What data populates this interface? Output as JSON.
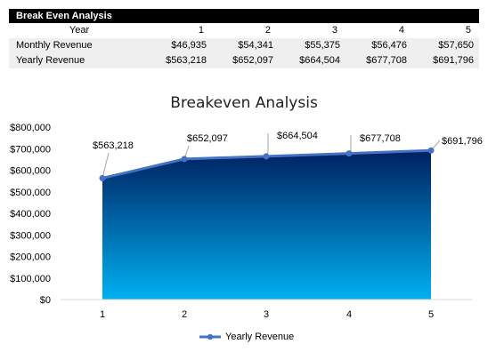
{
  "table": {
    "title": "Break Even Analysis",
    "year_label": "Year",
    "years": [
      "1",
      "2",
      "3",
      "4",
      "5"
    ],
    "rows": [
      {
        "label": "Monthly Revenue",
        "values": [
          "$46,935",
          "$54,341",
          "$55,375",
          "$56,476",
          "$57,650"
        ]
      },
      {
        "label": "Yearly Revenue",
        "values": [
          "$563,218",
          "$652,097",
          "$664,504",
          "$677,708",
          "$691,796"
        ]
      }
    ]
  },
  "chart_data": {
    "type": "area",
    "title": "Breakeven Analysis",
    "categories": [
      "1",
      "2",
      "3",
      "4",
      "5"
    ],
    "series": [
      {
        "name": "Yearly Revenue",
        "values": [
          563218,
          652097,
          664504,
          677708,
          691796
        ],
        "labels": [
          "$563,218",
          "$652,097",
          "$664,504",
          "$677,708",
          "$691,796"
        ]
      }
    ],
    "ylim": [
      0,
      800000
    ],
    "yticks": [
      "$0",
      "$100,000",
      "$200,000",
      "$300,000",
      "$400,000",
      "$500,000",
      "$600,000",
      "$700,000",
      "$800,000"
    ],
    "legend_position": "bottom",
    "grid": false,
    "colors": {
      "line": "#4472C4",
      "fill_top": "#002060",
      "fill_bottom": "#00B0F0"
    }
  }
}
